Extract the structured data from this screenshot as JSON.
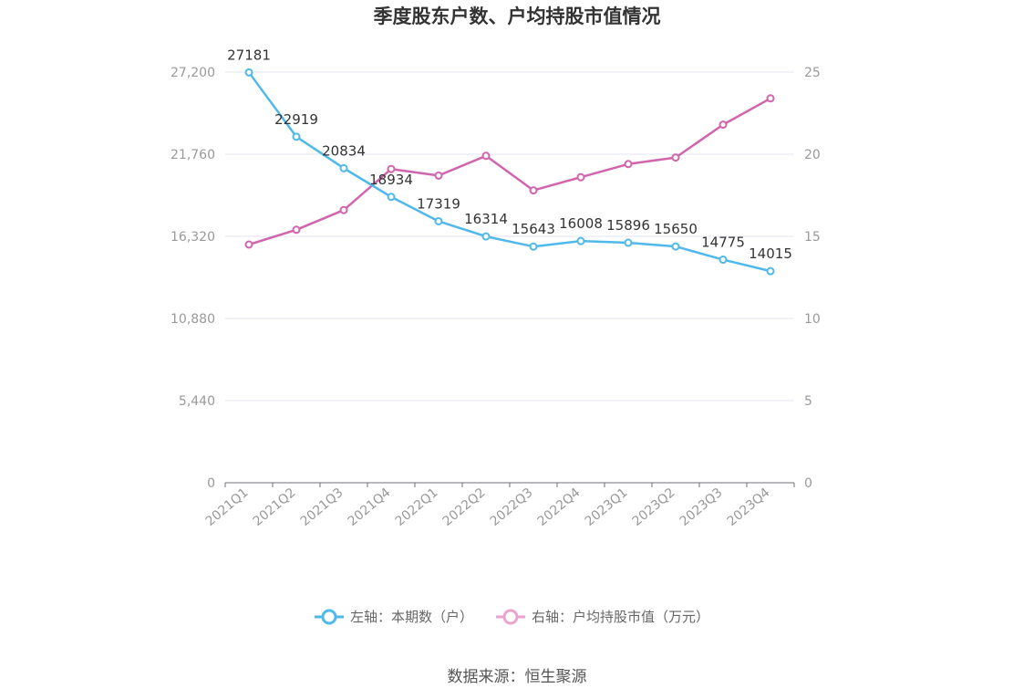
{
  "chart_data": {
    "type": "line",
    "title": "季度股东户数、户均持股市值情况",
    "categories": [
      "2021Q1",
      "2021Q2",
      "2021Q3",
      "2021Q4",
      "2022Q1",
      "2022Q2",
      "2022Q3",
      "2022Q4",
      "2023Q1",
      "2023Q2",
      "2023Q3",
      "2023Q4"
    ],
    "left_axis": {
      "ticks": [
        "0",
        "5,440",
        "10,880",
        "16,320",
        "21,760",
        "27,200"
      ],
      "ylim": [
        0,
        27200
      ]
    },
    "right_axis": {
      "ticks": [
        "0",
        "5",
        "10",
        "15",
        "20",
        "25"
      ],
      "ylim": [
        0,
        25
      ]
    },
    "series": [
      {
        "name": "左轴：本期数（户）",
        "axis": "left",
        "color": "#4fb9ec",
        "values": [
          27181,
          22919,
          20834,
          18934,
          17319,
          16314,
          15643,
          16008,
          15896,
          15650,
          14775,
          14015
        ],
        "labels": [
          "27181",
          "22919",
          "20834",
          "18934",
          "17319",
          "16314",
          "15643",
          "16008",
          "15896",
          "15650",
          "14775",
          "14015"
        ]
      },
      {
        "name": "右轴：户均持股市值（万元）",
        "axis": "right",
        "color": "#d264ad",
        "values": [
          14.5,
          15.4,
          16.6,
          19.1,
          18.7,
          19.9,
          17.8,
          18.6,
          19.4,
          19.8,
          21.8,
          23.4
        ]
      }
    ],
    "legend": {
      "position": "bottom",
      "left_label": "左轴：本期数（户）",
      "right_label": "右轴：户均持股市值（万元）",
      "left_color": "#4fb9ec",
      "right_color": "#e9a3cf"
    },
    "source": "数据来源：恒生聚源"
  }
}
